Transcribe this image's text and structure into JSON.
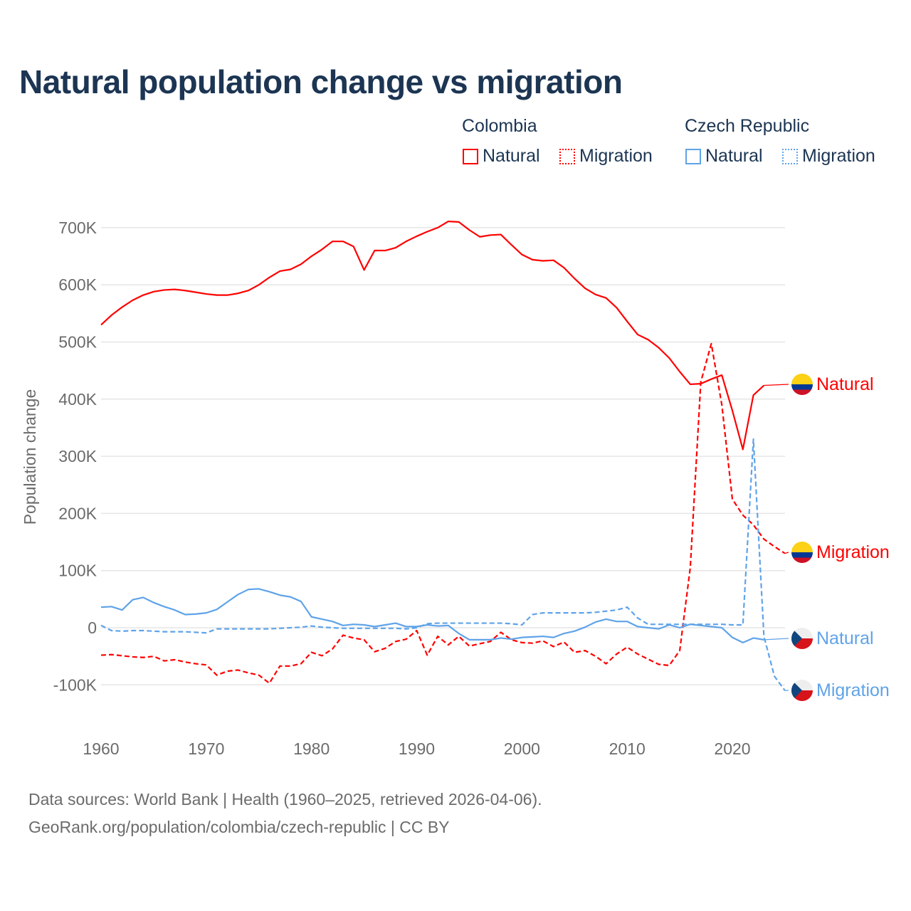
{
  "title": "Natural population change vs migration",
  "legend": {
    "groups": [
      {
        "name": "Colombia",
        "color": "#ff0000",
        "items": [
          "Natural",
          "Migration"
        ]
      },
      {
        "name": "Czech Republic",
        "color": "#5fa3e8",
        "items": [
          "Natural",
          "Migration"
        ]
      }
    ]
  },
  "footer": {
    "line1": "Data sources: World Bank | Health (1960–2025, retrieved 2026-04-06).",
    "line2": "GeoRank.org/population/colombia/czech-republic | CC BY"
  },
  "chart_data": {
    "type": "line",
    "title": "Natural population change vs migration",
    "xlabel": "",
    "ylabel": "Population change",
    "xlim": [
      1960,
      2025
    ],
    "ylim": [
      -100000,
      700000
    ],
    "x_ticks": [
      1960,
      1970,
      1980,
      1990,
      2000,
      2010,
      2020
    ],
    "x_tick_labels": [
      "1960",
      "1970",
      "1980",
      "1990",
      "2000",
      "2010",
      "2020"
    ],
    "y_ticks": [
      -100000,
      0,
      100000,
      200000,
      300000,
      400000,
      500000,
      600000,
      700000
    ],
    "y_tick_labels": [
      "-100K",
      "0",
      "100K",
      "200K",
      "300K",
      "400K",
      "500K",
      "600K",
      "700K"
    ],
    "grid": true,
    "legend_position": "top-right",
    "series": [
      {
        "name": "Colombia Natural",
        "label": "Natural",
        "color": "#ff0000",
        "dash": "solid",
        "start_year": 1960,
        "values": [
          530,
          547,
          561,
          573,
          582,
          588,
          591,
          592,
          590,
          587,
          584,
          582,
          582,
          585,
          590,
          600,
          613,
          624,
          627,
          636,
          650,
          662,
          676,
          676,
          667,
          626,
          660,
          660,
          665,
          676,
          685,
          693,
          700,
          711,
          710,
          696,
          684,
          687,
          688,
          670,
          653,
          644,
          642,
          643,
          630,
          611,
          594,
          583,
          577,
          560,
          536,
          513,
          504,
          490,
          472,
          448,
          426,
          427,
          435,
          442,
          380,
          312,
          407,
          424
        ],
        "unit": "thousands"
      },
      {
        "name": "Colombia Migration",
        "label": "Migration",
        "color": "#ff0000",
        "dash": "dashed",
        "start_year": 1960,
        "values": [
          -48,
          -47,
          -49,
          -51,
          -52,
          -50,
          -58,
          -56,
          -60,
          -63,
          -65,
          -83,
          -76,
          -74,
          -79,
          -83,
          -97,
          -67,
          -67,
          -63,
          -43,
          -49,
          -37,
          -13,
          -18,
          -21,
          -42,
          -36,
          -24,
          -20,
          -5,
          -48,
          -15,
          -30,
          -15,
          -32,
          -28,
          -24,
          -8,
          -21,
          -26,
          -27,
          -23,
          -33,
          -25,
          -43,
          -40,
          -50,
          -63,
          -46,
          -34,
          -46,
          -55,
          -64,
          -66,
          -40,
          105,
          430,
          497,
          390,
          225,
          197,
          180,
          155,
          142,
          130
        ],
        "unit": "thousands"
      },
      {
        "name": "Czech Republic Natural",
        "label": "Natural",
        "color": "#5fa3e8",
        "dash": "solid",
        "start_year": 1960,
        "values": [
          36,
          37,
          31,
          49,
          53,
          44,
          37,
          31,
          23,
          24,
          26,
          32,
          45,
          58,
          67,
          68,
          63,
          57,
          54,
          46,
          19,
          15,
          11,
          4,
          6,
          5,
          2,
          5,
          8,
          2,
          2,
          5,
          3,
          4,
          -10,
          -21,
          -21,
          -21,
          -18,
          -20,
          -17,
          -16,
          -15,
          -17,
          -10,
          -6,
          1,
          10,
          15,
          11,
          11,
          2,
          0,
          -2,
          5,
          0,
          6,
          4,
          2,
          0,
          -17,
          -26,
          -18,
          -21
        ],
        "unit": "thousands"
      },
      {
        "name": "Czech Republic Migration",
        "label": "Migration",
        "color": "#5fa3e8",
        "dash": "dashed",
        "start_year": 1960,
        "values": [
          4,
          -5,
          -6,
          -5,
          -5,
          -6,
          -7,
          -7,
          -7,
          -8,
          -9,
          -2,
          -2,
          -2,
          -2,
          -2,
          -2,
          -1,
          0,
          1,
          3,
          1,
          0,
          -1,
          -1,
          -1,
          -1,
          -1,
          -1,
          -2,
          0,
          7,
          8,
          8,
          8,
          8,
          8,
          8,
          8,
          7,
          5,
          23,
          26,
          26,
          26,
          26,
          26,
          27,
          29,
          31,
          36,
          17,
          6,
          6,
          6,
          6,
          6,
          6,
          6,
          6,
          5,
          5,
          330,
          -15,
          -85,
          -110
        ],
        "unit": "thousands"
      }
    ]
  }
}
